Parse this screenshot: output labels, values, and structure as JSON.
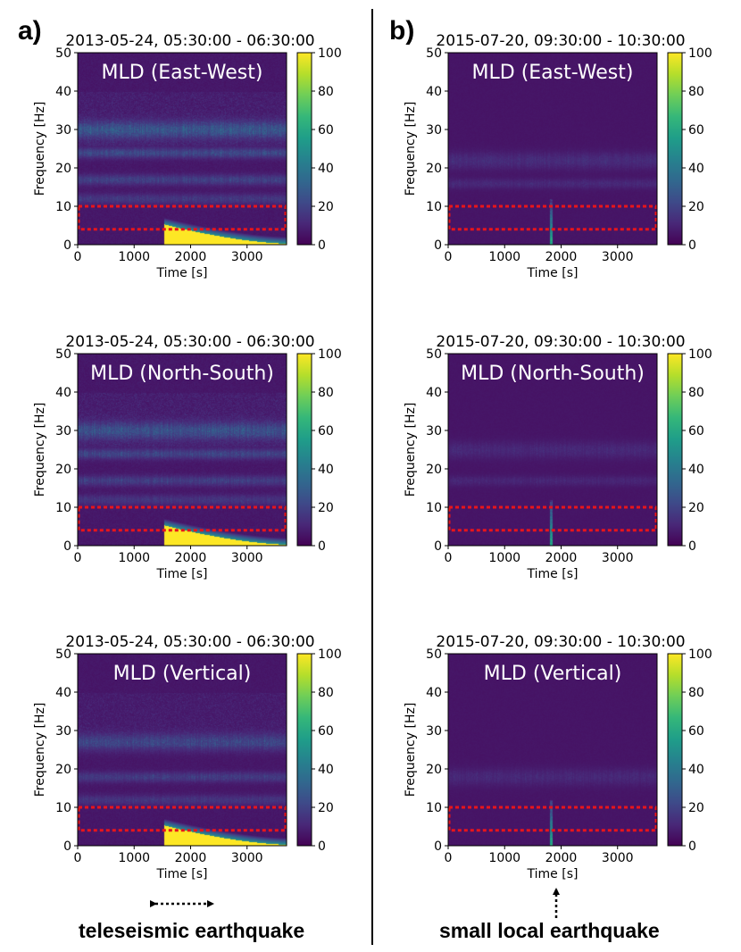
{
  "figure": {
    "panel_letters": [
      "a)",
      "b)"
    ],
    "annotations": {
      "left": "teleseismic earthquake",
      "right": "small local earthquake"
    },
    "colormap": [
      "#440154",
      "#482878",
      "#3e4a89",
      "#31688e",
      "#26828e",
      "#1f9e89",
      "#35b779",
      "#6ece58",
      "#b5de2b",
      "#fde725"
    ],
    "box_color": "#e8151b",
    "divider_color": "#000000"
  },
  "chart_data": [
    {
      "id": "a1",
      "type": "heatmap",
      "title": "2013-05-24, 05:30:00 - 06:30:00",
      "label": "MLD (East-West)",
      "xlabel": "Time [s]",
      "ylabel": "Frequency [Hz]",
      "xlim": [
        0,
        3700
      ],
      "ylim": [
        0,
        50
      ],
      "xticks": [
        "0",
        "1000",
        "2000",
        "3000"
      ],
      "yticks": [
        "0",
        "10",
        "20",
        "30",
        "40",
        "50"
      ],
      "clim": [
        0,
        100
      ],
      "cticks": [
        "0",
        "20",
        "40",
        "60",
        "80",
        "100"
      ],
      "highlight_band": {
        "freq_range_hz": [
          4,
          10
        ],
        "time_range_s": [
          0,
          3700
        ]
      },
      "bands_hz": [
        30,
        24,
        17,
        12
      ],
      "band_strength": 0.5,
      "noise": 1.0,
      "event": {
        "kind": "teleseismic",
        "onset_s": 1520,
        "end_s": 3700,
        "max_freq_hz": 5
      }
    },
    {
      "id": "a2",
      "type": "heatmap",
      "title": "2013-05-24, 05:30:00 - 06:30:00",
      "label": "MLD (North-South)",
      "xlabel": "Time [s]",
      "ylabel": "Frequency [Hz]",
      "xlim": [
        0,
        3700
      ],
      "ylim": [
        0,
        50
      ],
      "xticks": [
        "0",
        "1000",
        "2000",
        "3000"
      ],
      "yticks": [
        "0",
        "10",
        "20",
        "30",
        "40",
        "50"
      ],
      "clim": [
        0,
        100
      ],
      "cticks": [
        "0",
        "20",
        "40",
        "60",
        "80",
        "100"
      ],
      "highlight_band": {
        "freq_range_hz": [
          4,
          10
        ],
        "time_range_s": [
          0,
          3700
        ]
      },
      "bands_hz": [
        30,
        24,
        17,
        12
      ],
      "band_strength": 0.45,
      "noise": 1.0,
      "event": {
        "kind": "teleseismic",
        "onset_s": 1520,
        "end_s": 3700,
        "max_freq_hz": 5
      }
    },
    {
      "id": "a3",
      "type": "heatmap",
      "title": "2013-05-24, 05:30:00 - 06:30:00",
      "label": "MLD (Vertical)",
      "xlabel": "Time [s]",
      "ylabel": "Frequency [Hz]",
      "xlim": [
        0,
        3700
      ],
      "ylim": [
        0,
        50
      ],
      "xticks": [
        "0",
        "1000",
        "2000",
        "3000"
      ],
      "yticks": [
        "0",
        "10",
        "20",
        "30",
        "40",
        "50"
      ],
      "clim": [
        0,
        100
      ],
      "cticks": [
        "0",
        "20",
        "40",
        "60",
        "80",
        "100"
      ],
      "highlight_band": {
        "freq_range_hz": [
          4,
          10
        ],
        "time_range_s": [
          0,
          3700
        ]
      },
      "bands_hz": [
        27,
        18,
        12
      ],
      "band_strength": 0.35,
      "noise": 0.85,
      "event": {
        "kind": "teleseismic",
        "onset_s": 1520,
        "end_s": 3700,
        "max_freq_hz": 5
      }
    },
    {
      "id": "b1",
      "type": "heatmap",
      "title": "2015-07-20, 09:30:00 - 10:30:00",
      "label": "MLD (East-West)",
      "xlabel": "Time [s]",
      "ylabel": "Frequency [Hz]",
      "xlim": [
        0,
        3700
      ],
      "ylim": [
        0,
        50
      ],
      "xticks": [
        "0",
        "1000",
        "2000",
        "3000"
      ],
      "yticks": [
        "0",
        "10",
        "20",
        "30",
        "40",
        "50"
      ],
      "clim": [
        0,
        100
      ],
      "cticks": [
        "0",
        "20",
        "40",
        "60",
        "80",
        "100"
      ],
      "highlight_band": {
        "freq_range_hz": [
          4,
          10
        ],
        "time_range_s": [
          0,
          3700
        ]
      },
      "bands_hz": [
        22,
        16
      ],
      "band_strength": 0.18,
      "noise": 0.45,
      "event": {
        "kind": "local",
        "onset_s": 1820,
        "end_s": 1850,
        "max_freq_hz": 10
      }
    },
    {
      "id": "b2",
      "type": "heatmap",
      "title": "2015-07-20, 09:30:00 - 10:30:00",
      "label": "MLD (North-South)",
      "xlabel": "Time [s]",
      "ylabel": "Frequency [Hz]",
      "xlim": [
        0,
        3700
      ],
      "ylim": [
        0,
        50
      ],
      "xticks": [
        "0",
        "1000",
        "2000",
        "3000"
      ],
      "yticks": [
        "0",
        "10",
        "20",
        "30",
        "40",
        "50"
      ],
      "clim": [
        0,
        100
      ],
      "cticks": [
        "0",
        "20",
        "40",
        "60",
        "80",
        "100"
      ],
      "highlight_band": {
        "freq_range_hz": [
          4,
          10
        ],
        "time_range_s": [
          0,
          3700
        ]
      },
      "bands_hz": [
        25,
        17
      ],
      "band_strength": 0.15,
      "noise": 0.45,
      "event": {
        "kind": "local",
        "onset_s": 1820,
        "end_s": 1850,
        "max_freq_hz": 10
      }
    },
    {
      "id": "b3",
      "type": "heatmap",
      "title": "2015-07-20, 09:30:00 - 10:30:00",
      "label": "MLD (Vertical)",
      "xlabel": "Time [s]",
      "ylabel": "Frequency [Hz]",
      "xlim": [
        0,
        3700
      ],
      "ylim": [
        0,
        50
      ],
      "xticks": [
        "0",
        "1000",
        "2000",
        "3000"
      ],
      "yticks": [
        "0",
        "10",
        "20",
        "30",
        "40",
        "50"
      ],
      "clim": [
        0,
        100
      ],
      "cticks": [
        "0",
        "20",
        "40",
        "60",
        "80",
        "100"
      ],
      "highlight_band": {
        "freq_range_hz": [
          4,
          10
        ],
        "time_range_s": [
          0,
          3700
        ]
      },
      "bands_hz": [
        18
      ],
      "band_strength": 0.15,
      "noise": 0.45,
      "event": {
        "kind": "local",
        "onset_s": 1820,
        "end_s": 1850,
        "max_freq_hz": 10
      }
    }
  ]
}
